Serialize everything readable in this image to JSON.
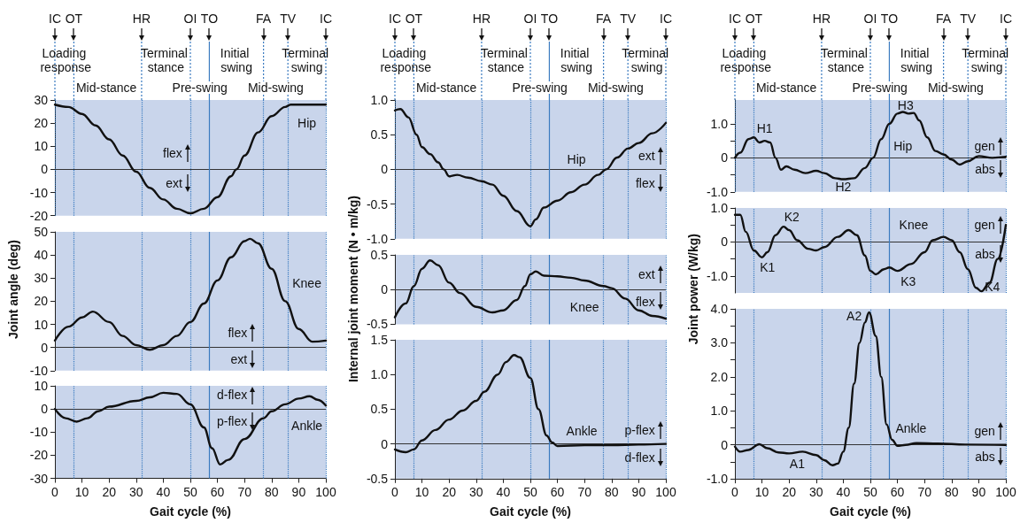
{
  "chart_data": [
    {
      "type": "line",
      "color": "#111111",
      "marker": "none",
      "line_style": "solid",
      "tick_labels": "y",
      "xlim": [
        0,
        100
      ],
      "ylim": [
        -20,
        30
      ],
      "yticks": [
        -20,
        -10,
        0,
        10,
        20,
        30
      ],
      "x": [
        0,
        5,
        10,
        15,
        20,
        25,
        30,
        35,
        40,
        45,
        50,
        55,
        60,
        65,
        67,
        70,
        75,
        80,
        85,
        87,
        100
      ],
      "values": [
        28,
        27,
        24,
        19,
        13,
        6,
        -1,
        -8,
        -13,
        -17,
        -19,
        -17,
        -12,
        -3,
        0,
        6,
        16,
        23,
        27,
        28,
        28
      ],
      "ref_lines": [
        {
          "axis": "y",
          "value": 0,
          "color": "#333333"
        },
        {
          "axis": "x",
          "value": 0,
          "label": "IC",
          "color": "#3b7bc0",
          "line_style": "dotted"
        },
        {
          "axis": "x",
          "value": 7,
          "label": "OT",
          "color": "#3b7bc0",
          "line_style": "dotted"
        },
        {
          "axis": "x",
          "value": 32,
          "label": "HR",
          "color": "#3b7bc0",
          "line_style": "dotted"
        },
        {
          "axis": "x",
          "value": 50,
          "label": "OI",
          "color": "#3b7bc0",
          "line_style": "dotted"
        },
        {
          "axis": "x",
          "value": 57,
          "label": "TO",
          "color": "#3b7bc0",
          "line_style": "solid"
        },
        {
          "axis": "x",
          "value": 77,
          "label": "FA",
          "color": "#3b7bc0",
          "line_style": "dotted"
        },
        {
          "axis": "x",
          "value": 86,
          "label": "TV",
          "color": "#3b7bc0",
          "line_style": "dotted"
        },
        {
          "axis": "x",
          "value": 100,
          "label": "IC",
          "color": "#3b7bc0",
          "line_style": "dotted"
        }
      ],
      "annotations": [
        "Loading response",
        "Mid-stance",
        "Terminal stance",
        "Pre-swing",
        "Initial swing",
        "Mid-swing",
        "Terminal swing",
        "Hip",
        "flex",
        "ext"
      ]
    },
    {
      "type": "line",
      "color": "#111111",
      "marker": "none",
      "line_style": "solid",
      "tick_labels": "y",
      "xlim": [
        0,
        100
      ],
      "ylim": [
        -10,
        50
      ],
      "yticks": [
        -10,
        0,
        10,
        20,
        30,
        40,
        50
      ],
      "ylabel": "Joint angle (deg)",
      "x": [
        0,
        5,
        10,
        14,
        20,
        25,
        30,
        35,
        40,
        45,
        50,
        55,
        60,
        65,
        70,
        72,
        75,
        80,
        85,
        90,
        95,
        100
      ],
      "values": [
        3,
        9,
        13,
        15.5,
        11,
        5,
        1,
        -1,
        1,
        5,
        11,
        19,
        29,
        39,
        46,
        47,
        45,
        34,
        20,
        8,
        2.5,
        3
      ],
      "ref_lines": [
        {
          "axis": "y",
          "value": 0,
          "color": "#333333"
        },
        {
          "axis": "x",
          "value": 7,
          "color": "#3b7bc0",
          "line_style": "dotted"
        },
        {
          "axis": "x",
          "value": 32,
          "color": "#3b7bc0",
          "line_style": "dotted"
        },
        {
          "axis": "x",
          "value": 50,
          "color": "#3b7bc0",
          "line_style": "dotted"
        },
        {
          "axis": "x",
          "value": 57,
          "color": "#3b7bc0",
          "line_style": "solid"
        },
        {
          "axis": "x",
          "value": 77,
          "color": "#3b7bc0",
          "line_style": "dotted"
        },
        {
          "axis": "x",
          "value": 86,
          "color": "#3b7bc0",
          "line_style": "dotted"
        },
        {
          "axis": "x",
          "value": 100,
          "color": "#3b7bc0",
          "line_style": "dotted"
        }
      ],
      "annotations": [
        "Knee",
        "flex",
        "ext"
      ]
    },
    {
      "type": "line",
      "color": "#111111",
      "marker": "none",
      "line_style": "solid",
      "xlim": [
        0,
        100
      ],
      "ylim": [
        -30,
        10
      ],
      "yticks": [
        -30,
        -20,
        -10,
        0,
        10
      ],
      "xticks": [
        0,
        10,
        20,
        30,
        40,
        50,
        60,
        70,
        80,
        90,
        100
      ],
      "xlabel": "Gait cycle (%)",
      "x": [
        0,
        4,
        8,
        12,
        16,
        20,
        30,
        35,
        40,
        45,
        50,
        55,
        58,
        61,
        64,
        70,
        77,
        80,
        85,
        90,
        94,
        97,
        100
      ],
      "values": [
        0,
        -4,
        -5.5,
        -4,
        -1,
        1,
        3.5,
        5,
        7,
        6.5,
        2,
        -8,
        -17,
        -24,
        -22,
        -13,
        -4,
        -1,
        2,
        4.5,
        5.5,
        4,
        1.5
      ],
      "ref_lines": [
        {
          "axis": "y",
          "value": 0,
          "color": "#333333"
        },
        {
          "axis": "x",
          "value": 7,
          "color": "#3b7bc0",
          "line_style": "dotted"
        },
        {
          "axis": "x",
          "value": 32,
          "color": "#3b7bc0",
          "line_style": "dotted"
        },
        {
          "axis": "x",
          "value": 50,
          "color": "#3b7bc0",
          "line_style": "dotted"
        },
        {
          "axis": "x",
          "value": 57,
          "color": "#3b7bc0",
          "line_style": "solid"
        },
        {
          "axis": "x",
          "value": 77,
          "color": "#3b7bc0",
          "line_style": "dotted"
        },
        {
          "axis": "x",
          "value": 86,
          "color": "#3b7bc0",
          "line_style": "dotted"
        },
        {
          "axis": "x",
          "value": 100,
          "color": "#3b7bc0",
          "line_style": "dotted"
        }
      ],
      "annotations": [
        "Ankle",
        "d-flex",
        "p-flex"
      ]
    },
    {
      "type": "line",
      "color": "#111111",
      "marker": "none",
      "line_style": "solid",
      "tick_labels": "y",
      "xlim": [
        0,
        100
      ],
      "ylim": [
        -1,
        1
      ],
      "yticks": [
        {
          "value": -1,
          "label": "-1.0"
        },
        -0.5,
        0,
        0.5,
        {
          "value": 1,
          "label": "1.0"
        }
      ],
      "x": [
        0,
        2,
        5,
        8,
        10,
        13,
        16,
        18,
        20,
        23,
        27,
        32,
        36,
        40,
        45,
        50,
        52,
        55,
        60,
        65,
        70,
        75,
        78,
        82,
        86,
        90,
        95,
        100
      ],
      "values": [
        0.85,
        0.87,
        0.75,
        0.5,
        0.32,
        0.22,
        0.1,
        0,
        -0.1,
        -0.08,
        -0.12,
        -0.17,
        -0.22,
        -0.38,
        -0.6,
        -0.82,
        -0.72,
        -0.55,
        -0.45,
        -0.33,
        -0.22,
        -0.08,
        0,
        0.17,
        0.3,
        0.38,
        0.52,
        0.67
      ],
      "ref_lines": [
        {
          "axis": "y",
          "value": 0,
          "color": "#333333"
        },
        {
          "axis": "x",
          "value": 0,
          "label": "IC",
          "color": "#3b7bc0",
          "line_style": "dotted"
        },
        {
          "axis": "x",
          "value": 7,
          "label": "OT",
          "color": "#3b7bc0",
          "line_style": "dotted"
        },
        {
          "axis": "x",
          "value": 32,
          "label": "HR",
          "color": "#3b7bc0",
          "line_style": "dotted"
        },
        {
          "axis": "x",
          "value": 50,
          "label": "OI",
          "color": "#3b7bc0",
          "line_style": "dotted"
        },
        {
          "axis": "x",
          "value": 57,
          "label": "TO",
          "color": "#3b7bc0",
          "line_style": "solid"
        },
        {
          "axis": "x",
          "value": 77,
          "label": "FA",
          "color": "#3b7bc0",
          "line_style": "dotted"
        },
        {
          "axis": "x",
          "value": 86,
          "label": "TV",
          "color": "#3b7bc0",
          "line_style": "dotted"
        },
        {
          "axis": "x",
          "value": 100,
          "label": "IC",
          "color": "#3b7bc0",
          "line_style": "dotted"
        }
      ],
      "annotations": [
        "Loading response",
        "Mid-stance",
        "Terminal stance",
        "Pre-swing",
        "Initial swing",
        "Mid-swing",
        "Terminal swing",
        "Hip",
        "ext",
        "flex"
      ]
    },
    {
      "type": "line",
      "color": "#111111",
      "marker": "none",
      "line_style": "solid",
      "tick_labels": "y",
      "xlim": [
        0,
        100
      ],
      "ylim": [
        -0.5,
        0.5
      ],
      "yticks": [
        -0.5,
        0,
        0.5
      ],
      "ylabel": "Internal joint moment (N • m/kg)",
      "x": [
        0,
        4,
        7,
        10,
        13,
        16,
        20,
        24,
        30,
        36,
        40,
        45,
        48,
        50,
        52,
        55,
        60,
        65,
        70,
        77,
        80,
        85,
        90,
        95,
        100
      ],
      "values": [
        -0.4,
        -0.2,
        0.05,
        0.3,
        0.42,
        0.35,
        0.1,
        -0.05,
        -0.25,
        -0.33,
        -0.3,
        -0.15,
        0.05,
        0.22,
        0.26,
        0.2,
        0.19,
        0.17,
        0.13,
        0.05,
        0.02,
        -0.13,
        -0.3,
        -0.38,
        -0.42
      ],
      "ref_lines": [
        {
          "axis": "y",
          "value": 0,
          "color": "#333333"
        },
        {
          "axis": "x",
          "value": 7,
          "color": "#3b7bc0",
          "line_style": "dotted"
        },
        {
          "axis": "x",
          "value": 32,
          "color": "#3b7bc0",
          "line_style": "dotted"
        },
        {
          "axis": "x",
          "value": 50,
          "color": "#3b7bc0",
          "line_style": "dotted"
        },
        {
          "axis": "x",
          "value": 57,
          "color": "#3b7bc0",
          "line_style": "solid"
        },
        {
          "axis": "x",
          "value": 77,
          "color": "#3b7bc0",
          "line_style": "dotted"
        },
        {
          "axis": "x",
          "value": 86,
          "color": "#3b7bc0",
          "line_style": "dotted"
        },
        {
          "axis": "x",
          "value": 100,
          "color": "#3b7bc0",
          "line_style": "dotted"
        }
      ],
      "annotations": [
        "Knee",
        "ext",
        "flex"
      ]
    },
    {
      "type": "line",
      "color": "#111111",
      "marker": "none",
      "line_style": "solid",
      "xlim": [
        0,
        100
      ],
      "ylim": [
        -0.5,
        1.5
      ],
      "yticks": [
        -0.5,
        0,
        0.5,
        {
          "value": 1,
          "label": "1.0"
        },
        1.5
      ],
      "xticks": [
        0,
        10,
        20,
        30,
        40,
        50,
        60,
        70,
        80,
        90,
        100
      ],
      "xlabel": "Gait cycle (%)",
      "x": [
        0,
        4,
        7,
        10,
        15,
        20,
        25,
        30,
        33,
        38,
        41,
        44,
        46,
        50,
        53,
        56,
        58,
        60,
        70,
        80,
        90,
        100
      ],
      "values": [
        -0.08,
        -0.12,
        -0.08,
        0.05,
        0.2,
        0.35,
        0.48,
        0.62,
        0.75,
        1.0,
        1.18,
        1.28,
        1.25,
        0.95,
        0.5,
        0.12,
        0.02,
        -0.03,
        -0.02,
        -0.02,
        -0.01,
        0
      ],
      "ref_lines": [
        {
          "axis": "y",
          "value": 0,
          "color": "#333333"
        },
        {
          "axis": "x",
          "value": 7,
          "color": "#3b7bc0",
          "line_style": "dotted"
        },
        {
          "axis": "x",
          "value": 32,
          "color": "#3b7bc0",
          "line_style": "dotted"
        },
        {
          "axis": "x",
          "value": 50,
          "color": "#3b7bc0",
          "line_style": "dotted"
        },
        {
          "axis": "x",
          "value": 57,
          "color": "#3b7bc0",
          "line_style": "solid"
        },
        {
          "axis": "x",
          "value": 77,
          "color": "#3b7bc0",
          "line_style": "dotted"
        },
        {
          "axis": "x",
          "value": 86,
          "color": "#3b7bc0",
          "line_style": "dotted"
        },
        {
          "axis": "x",
          "value": 100,
          "color": "#3b7bc0",
          "line_style": "dotted"
        }
      ],
      "annotations": [
        "Ankle",
        "p-flex",
        "d-flex"
      ]
    },
    {
      "type": "line",
      "color": "#111111",
      "marker": "none",
      "line_style": "solid",
      "tick_labels": "y",
      "xlim": [
        0,
        100
      ],
      "ylim": [
        -1,
        1.7
      ],
      "yticks": [
        {
          "value": -1,
          "label": "-1.0"
        },
        {
          "value": -0.5,
          "label": null
        },
        0,
        {
          "value": 0.5,
          "label": null
        },
        {
          "value": 1,
          "label": "1.0"
        }
      ],
      "x": [
        0,
        2,
        5,
        7,
        9,
        11,
        13,
        15,
        17,
        19,
        22,
        26,
        30,
        33,
        37,
        40,
        44,
        48,
        51,
        54,
        57,
        60,
        62,
        64,
        66,
        68,
        71,
        74,
        77,
        80,
        83,
        86,
        90,
        95,
        100
      ],
      "values": [
        0,
        0.15,
        0.55,
        0.6,
        0.45,
        0.5,
        0.45,
        0,
        -0.35,
        -0.25,
        -0.35,
        -0.45,
        -0.38,
        -0.45,
        -0.6,
        -0.63,
        -0.6,
        -0.3,
        0,
        0.55,
        1.0,
        1.3,
        1.35,
        1.3,
        1.32,
        1.1,
        0.6,
        0.2,
        0.1,
        -0.05,
        -0.2,
        -0.1,
        0.05,
        0,
        0.03
      ],
      "ref_lines": [
        {
          "axis": "y",
          "value": 0,
          "color": "#333333"
        },
        {
          "axis": "x",
          "value": 0,
          "label": "IC",
          "color": "#3b7bc0",
          "line_style": "dotted"
        },
        {
          "axis": "x",
          "value": 7,
          "label": "OT",
          "color": "#3b7bc0",
          "line_style": "dotted"
        },
        {
          "axis": "x",
          "value": 32,
          "label": "HR",
          "color": "#3b7bc0",
          "line_style": "dotted"
        },
        {
          "axis": "x",
          "value": 50,
          "label": "OI",
          "color": "#3b7bc0",
          "line_style": "dotted"
        },
        {
          "axis": "x",
          "value": 57,
          "label": "TO",
          "color": "#3b7bc0",
          "line_style": "solid"
        },
        {
          "axis": "x",
          "value": 77,
          "label": "FA",
          "color": "#3b7bc0",
          "line_style": "dotted"
        },
        {
          "axis": "x",
          "value": 86,
          "label": "TV",
          "color": "#3b7bc0",
          "line_style": "dotted"
        },
        {
          "axis": "x",
          "value": 100,
          "label": "IC",
          "color": "#3b7bc0",
          "line_style": "dotted"
        }
      ],
      "annotations": [
        "Loading response",
        "Mid-stance",
        "Terminal stance",
        "Pre-swing",
        "Initial swing",
        "Mid-swing",
        "Terminal swing",
        "H1",
        "H2",
        "H3",
        "Hip",
        "gen",
        "abs"
      ]
    },
    {
      "type": "line",
      "color": "#111111",
      "marker": "none",
      "line_style": "solid",
      "tick_labels": "y",
      "xlim": [
        0,
        100
      ],
      "ylim": [
        -1.5,
        1
      ],
      "yticks": [
        {
          "value": -1,
          "label": "-1.0"
        },
        {
          "value": -0.5,
          "label": null
        },
        0,
        {
          "value": 0.5,
          "label": null
        },
        {
          "value": 1,
          "label": "1.0"
        }
      ],
      "ylabel": "Joint power (W/kg)",
      "x": [
        0,
        2,
        4,
        7,
        10,
        12,
        15,
        18,
        20,
        23,
        27,
        30,
        33,
        38,
        42,
        45,
        48,
        50,
        52,
        55,
        57,
        60,
        65,
        70,
        73,
        77,
        80,
        83,
        86,
        89,
        91,
        94,
        97,
        100
      ],
      "values": [
        0.8,
        0.8,
        0.3,
        -0.25,
        -0.45,
        -0.3,
        0.2,
        0.45,
        0.35,
        0.05,
        -0.2,
        -0.25,
        -0.15,
        0.15,
        0.35,
        0.2,
        -0.4,
        -0.85,
        -0.95,
        -0.8,
        -0.75,
        -0.85,
        -0.65,
        -0.3,
        0.05,
        0.15,
        0.05,
        -0.3,
        -0.8,
        -1.35,
        -1.45,
        -1.2,
        -0.5,
        0.5
      ],
      "ref_lines": [
        {
          "axis": "y",
          "value": 0,
          "color": "#333333"
        },
        {
          "axis": "x",
          "value": 7,
          "color": "#3b7bc0",
          "line_style": "dotted"
        },
        {
          "axis": "x",
          "value": 32,
          "color": "#3b7bc0",
          "line_style": "dotted"
        },
        {
          "axis": "x",
          "value": 50,
          "color": "#3b7bc0",
          "line_style": "dotted"
        },
        {
          "axis": "x",
          "value": 57,
          "color": "#3b7bc0",
          "line_style": "solid"
        },
        {
          "axis": "x",
          "value": 77,
          "color": "#3b7bc0",
          "line_style": "dotted"
        },
        {
          "axis": "x",
          "value": 86,
          "color": "#3b7bc0",
          "line_style": "dotted"
        },
        {
          "axis": "x",
          "value": 100,
          "color": "#3b7bc0",
          "line_style": "dotted"
        }
      ],
      "annotations": [
        "K1",
        "K2",
        "K3",
        "K4",
        "Knee",
        "gen",
        "abs"
      ]
    },
    {
      "type": "line",
      "color": "#111111",
      "marker": "none",
      "line_style": "solid",
      "xlim": [
        0,
        100
      ],
      "ylim": [
        -1,
        4
      ],
      "yticks": [
        {
          "value": -1,
          "label": "-1.0"
        },
        {
          "value": -0.5,
          "label": null
        },
        0,
        {
          "value": 0.5,
          "label": null
        },
        {
          "value": 1,
          "label": "1.0"
        },
        {
          "value": 1.5,
          "label": null
        },
        {
          "value": 2,
          "label": "2.0"
        },
        {
          "value": 2.5,
          "label": null
        },
        {
          "value": 3,
          "label": "3.0"
        },
        {
          "value": 3.5,
          "label": null
        },
        {
          "value": 4,
          "label": "4.0"
        }
      ],
      "xticks": [
        0,
        10,
        20,
        30,
        40,
        50,
        60,
        70,
        80,
        90,
        100
      ],
      "xlabel": "Gait cycle (%)",
      "x": [
        0,
        2,
        5,
        9,
        12,
        16,
        20,
        25,
        30,
        33,
        36,
        38,
        40,
        42,
        44,
        46,
        48,
        49.5,
        52,
        54,
        56,
        58,
        60,
        63,
        67,
        75,
        85,
        100
      ],
      "values": [
        -0.05,
        -0.2,
        -0.15,
        0.02,
        -0.1,
        -0.22,
        -0.25,
        -0.2,
        -0.3,
        -0.45,
        -0.6,
        -0.55,
        -0.2,
        0.5,
        1.8,
        3.0,
        3.6,
        3.9,
        3.2,
        2.0,
        0.6,
        0.15,
        -0.03,
        0,
        0.05,
        0.04,
        0.01,
        0
      ],
      "ref_lines": [
        {
          "axis": "y",
          "value": 0,
          "color": "#333333"
        },
        {
          "axis": "x",
          "value": 7,
          "color": "#3b7bc0",
          "line_style": "dotted"
        },
        {
          "axis": "x",
          "value": 32,
          "color": "#3b7bc0",
          "line_style": "dotted"
        },
        {
          "axis": "x",
          "value": 50,
          "color": "#3b7bc0",
          "line_style": "dotted"
        },
        {
          "axis": "x",
          "value": 57,
          "color": "#3b7bc0",
          "line_style": "solid"
        },
        {
          "axis": "x",
          "value": 77,
          "color": "#3b7bc0",
          "line_style": "dotted"
        },
        {
          "axis": "x",
          "value": 86,
          "color": "#3b7bc0",
          "line_style": "dotted"
        },
        {
          "axis": "x",
          "value": 100,
          "color": "#3b7bc0",
          "line_style": "dotted"
        }
      ],
      "annotations": [
        "A1",
        "A2",
        "Ankle",
        "gen",
        "abs"
      ]
    }
  ]
}
